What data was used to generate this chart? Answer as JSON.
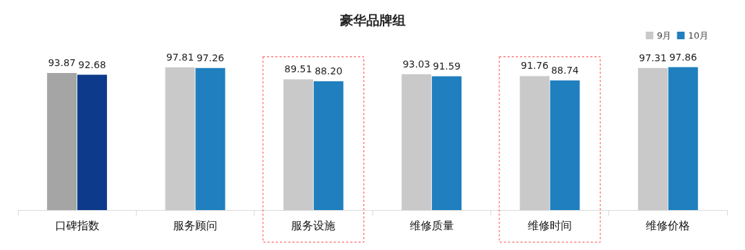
{
  "chart_data": {
    "type": "bar",
    "title": "豪华品牌组",
    "categories": [
      "口碑指数",
      "服务顾问",
      "服务设施",
      "维修质量",
      "维修时间",
      "维修价格"
    ],
    "series": [
      {
        "name": "9月",
        "color": "#c9c9c9",
        "colors": [
          "#a5a5a5",
          "#c9c9c9",
          "#c9c9c9",
          "#c9c9c9",
          "#c9c9c9",
          "#c9c9c9"
        ],
        "values": [
          93.87,
          97.81,
          89.51,
          93.03,
          91.76,
          97.31
        ],
        "value_labels": [
          "93.87",
          "97.81",
          "89.51",
          "93.03",
          "91.76",
          "97.31"
        ]
      },
      {
        "name": "10月",
        "color": "#1f7fbf",
        "colors": [
          "#0d3a8a",
          "#1f7fbf",
          "#1f7fbf",
          "#1f7fbf",
          "#1f7fbf",
          "#1f7fbf"
        ],
        "values": [
          92.68,
          97.26,
          88.2,
          91.59,
          88.74,
          97.86
        ],
        "value_labels": [
          "92.68",
          "97.26",
          "88.20",
          "91.59",
          "88.74",
          "97.86"
        ]
      }
    ],
    "legend": "top right",
    "tick_labels": "x",
    "grid": false
  }
}
